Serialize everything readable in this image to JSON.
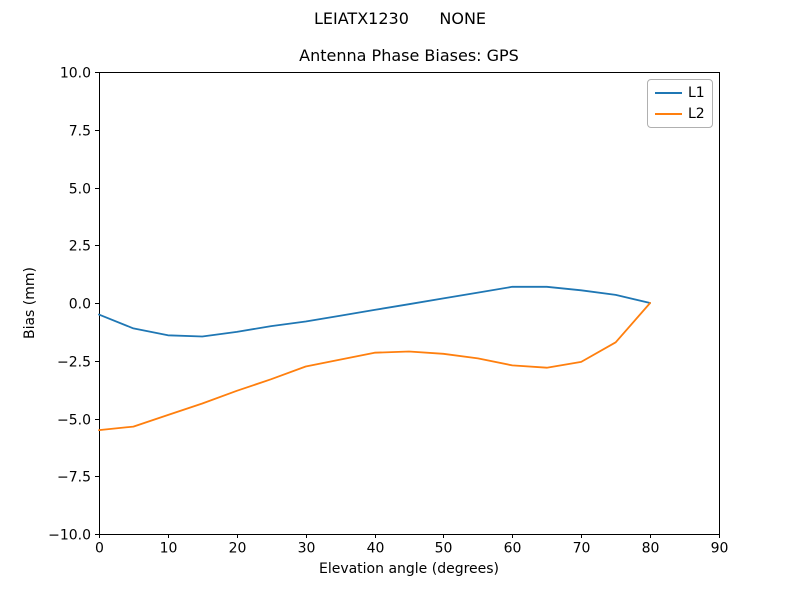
{
  "figure": {
    "suptitle": "LEIATX1230      NONE",
    "background": "#ffffff"
  },
  "chart_data": {
    "type": "line",
    "title": "Antenna Phase Biases: GPS",
    "xlabel": "Elevation angle (degrees)",
    "ylabel": "Bias (mm)",
    "xlim": [
      0,
      90
    ],
    "ylim": [
      -10,
      10
    ],
    "grid": false,
    "legend_position": "upper right",
    "x": [
      0,
      5,
      10,
      15,
      20,
      25,
      30,
      35,
      40,
      45,
      50,
      55,
      60,
      65,
      70,
      75,
      80
    ],
    "series": [
      {
        "name": "L1",
        "color": "#1f77b4",
        "values": [
          -0.5,
          -1.1,
          -1.4,
          -1.45,
          -1.25,
          -1.0,
          -0.8,
          -0.55,
          -0.3,
          -0.05,
          0.2,
          0.45,
          0.7,
          0.7,
          0.55,
          0.35,
          0.0
        ]
      },
      {
        "name": "L2",
        "color": "#ff7f0e",
        "values": [
          -5.5,
          -5.35,
          -4.85,
          -4.35,
          -3.8,
          -3.3,
          -2.75,
          -2.45,
          -2.15,
          -2.1,
          -2.2,
          -2.4,
          -2.7,
          -2.8,
          -2.55,
          -1.7,
          0.0
        ]
      }
    ],
    "xticks": {
      "values": [
        0,
        10,
        20,
        30,
        40,
        50,
        60,
        70,
        80,
        90
      ],
      "labels": [
        "0",
        "10",
        "20",
        "30",
        "40",
        "50",
        "60",
        "70",
        "80",
        "90"
      ]
    },
    "yticks": {
      "values": [
        10,
        7.5,
        5,
        2.5,
        0,
        -2.5,
        -5,
        -7.5,
        -10
      ],
      "labels": [
        "10.0",
        "7.5",
        "5.0",
        "2.5",
        "0.0",
        "−2.5",
        "−5.0",
        "−7.5",
        "−10.0"
      ]
    }
  }
}
